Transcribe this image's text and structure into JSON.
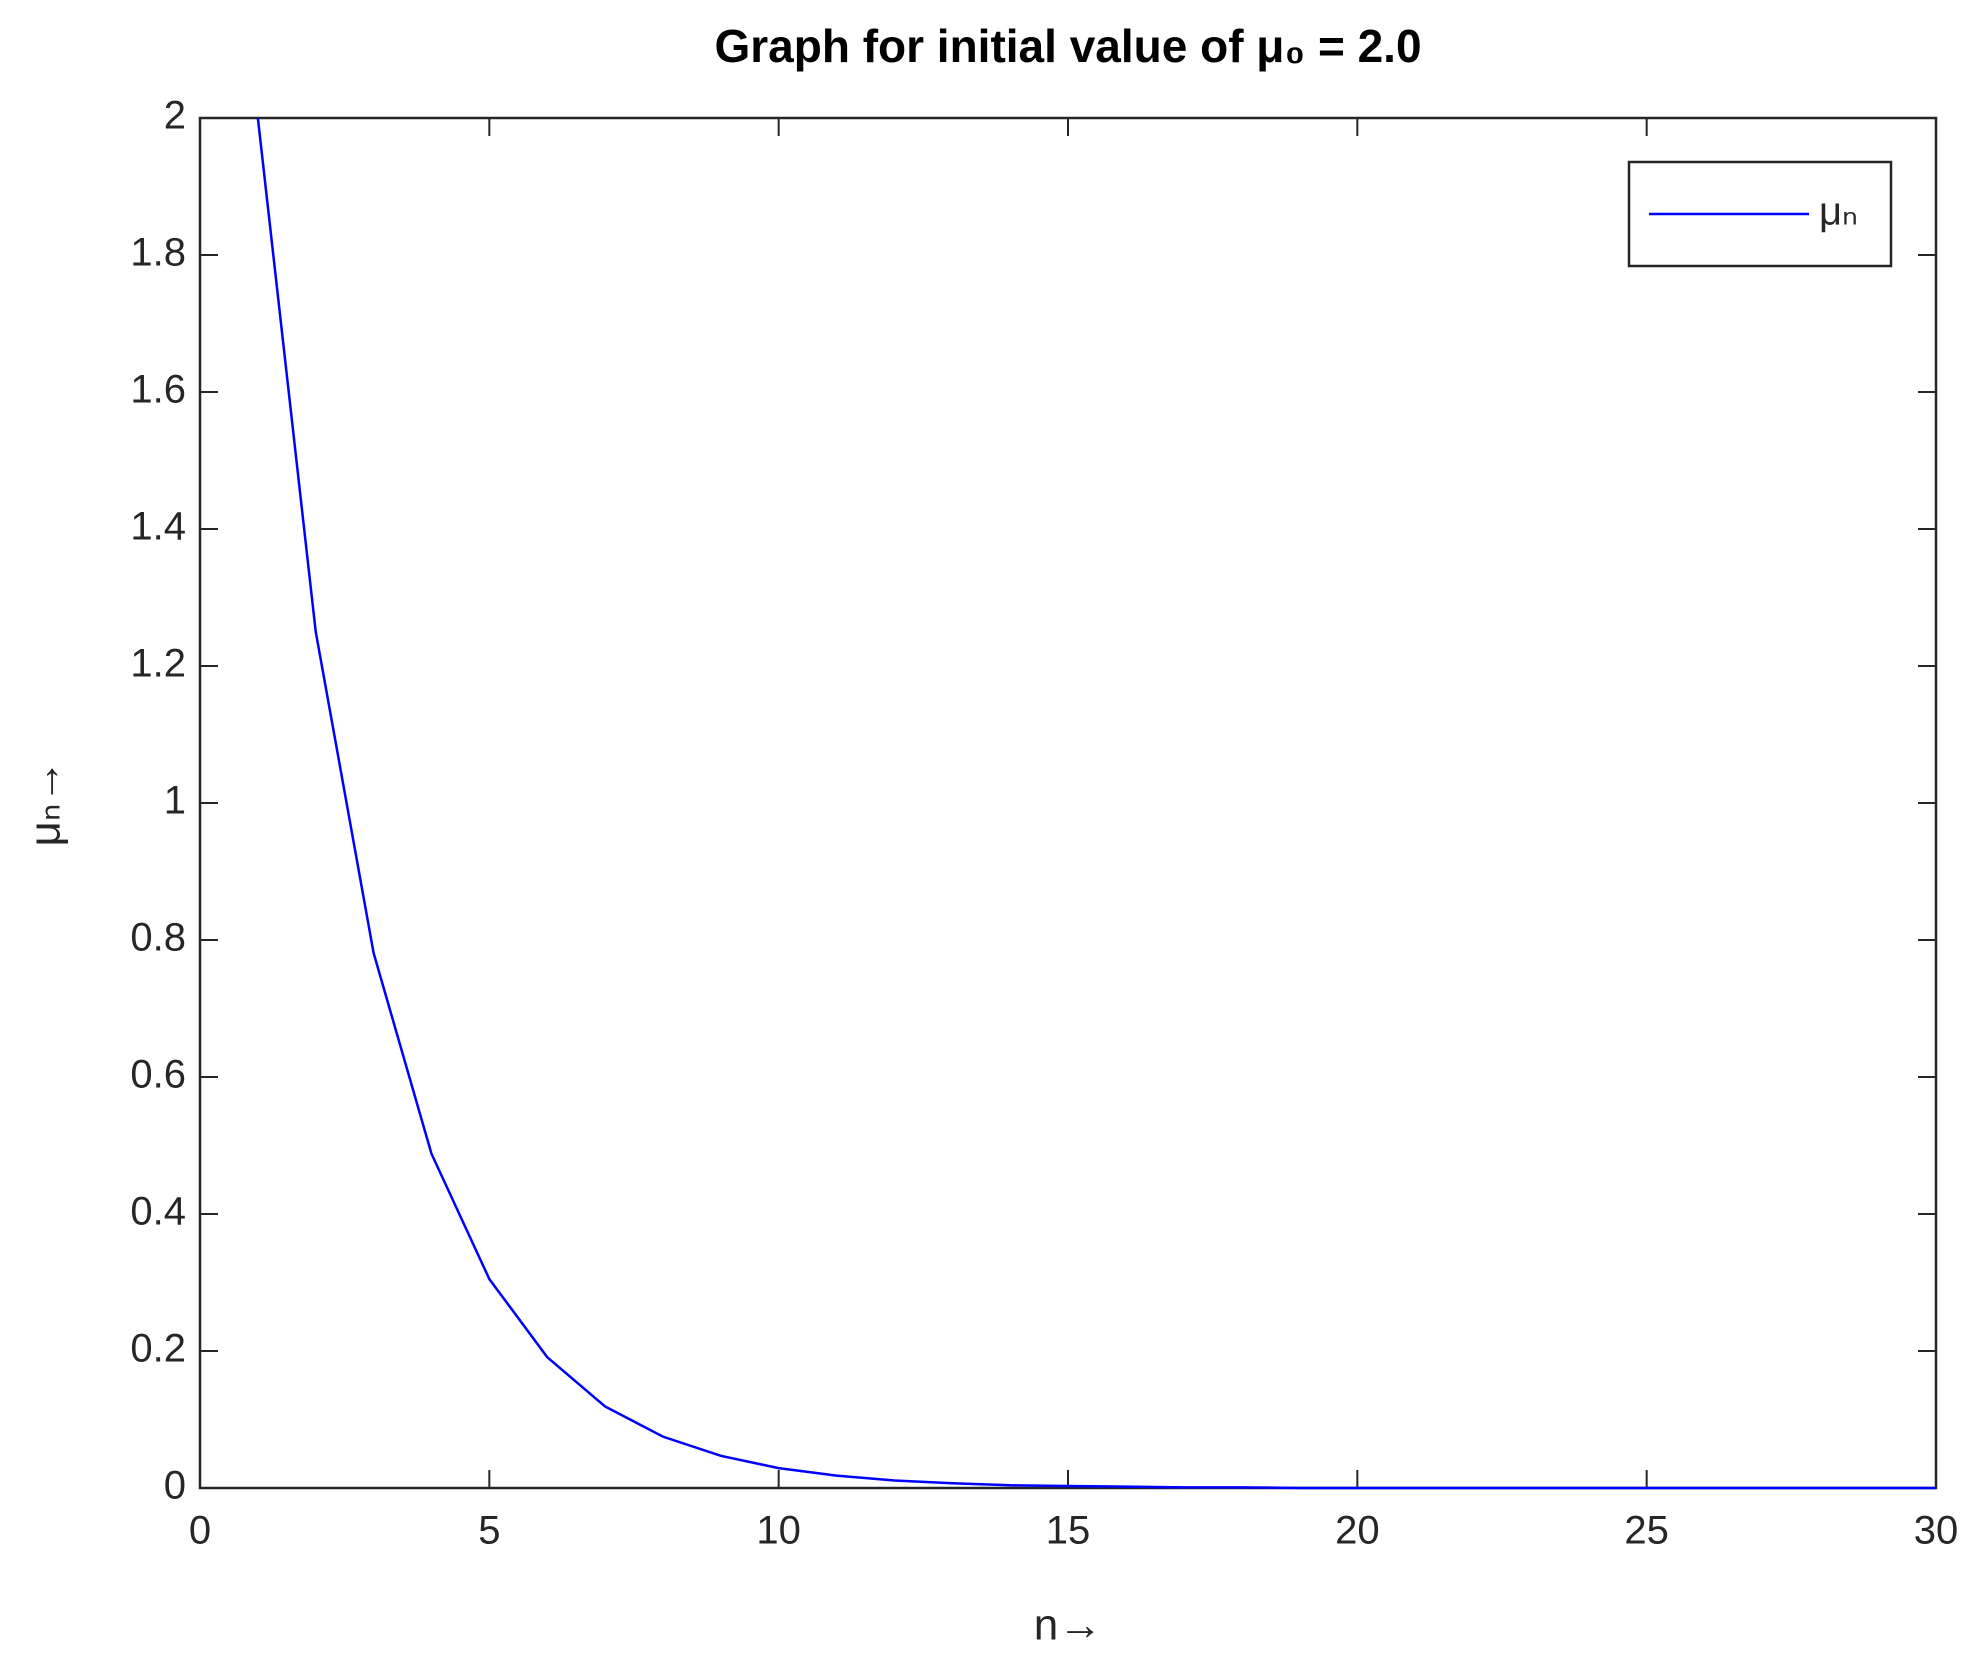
{
  "chart_data": {
    "type": "line",
    "title": "Graph for initial value of μ₀ = 2.0",
    "x_label": "n→",
    "y_label": "μₙ→",
    "x": [
      1,
      2,
      3,
      4,
      5,
      6,
      7,
      8,
      9,
      10,
      11,
      12,
      13,
      14,
      15,
      16,
      17,
      18,
      19,
      20,
      21,
      22,
      23,
      24,
      25,
      26,
      27,
      28,
      29,
      30
    ],
    "series": [
      {
        "name": "μₙ",
        "color": "#0000ff",
        "values": [
          2,
          1.25,
          0.781,
          0.488,
          0.305,
          0.191,
          0.119,
          0.075,
          0.047,
          0.029,
          0.018,
          0.011,
          0.007,
          0.004,
          0.003,
          0.002,
          0.001,
          0.001,
          0,
          0,
          0,
          0,
          0,
          0,
          0,
          0,
          0,
          0,
          0,
          0
        ]
      }
    ],
    "xlim": [
      0,
      30
    ],
    "xticks": [
      0,
      5,
      10,
      15,
      20,
      25,
      30
    ],
    "ylim": [
      0,
      2
    ],
    "yticks": [
      0,
      0.2,
      0.4,
      0.6,
      0.8,
      1,
      1.2,
      1.4,
      1.6,
      1.8,
      2
    ],
    "grid": false,
    "legend_position": "upper right"
  }
}
